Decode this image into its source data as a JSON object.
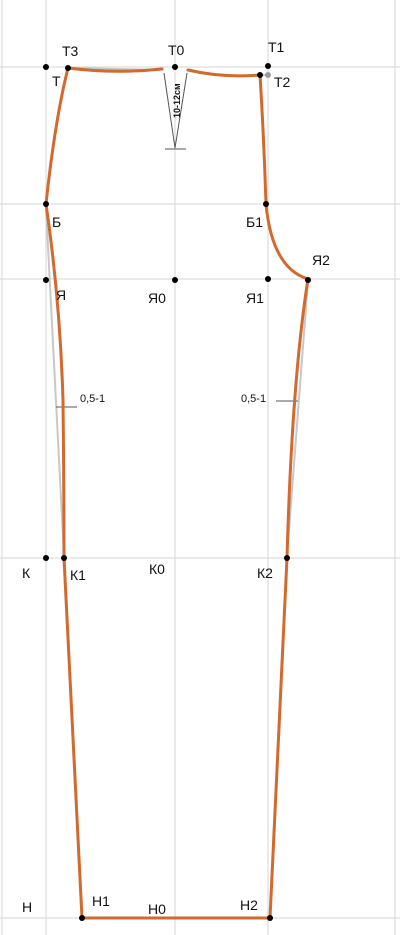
{
  "colors": {
    "background": "#ffffff",
    "grid": "#d6d6d6",
    "pattern_line": "#d2692e",
    "guide_line": "#c8c8c8",
    "point": "#000000",
    "text": "#111111"
  },
  "points": {
    "T3": "Т3",
    "T": "Т",
    "T0": "Т0",
    "T1": "Т1",
    "T2": "Т2",
    "B": "Б",
    "B1": "Б1",
    "Ya": "Я",
    "Ya0": "Я0",
    "Ya1": "Я1",
    "Ya2": "Я2",
    "K": "К",
    "K1": "К1",
    "K0": "К0",
    "K2": "К2",
    "N": "Н",
    "N1": "Н1",
    "N0": "Н0",
    "N2": "Н2"
  },
  "annotations": {
    "dart_depth": "10-12см",
    "left_offset": "0,5-1",
    "right_offset": "0,5-1"
  }
}
